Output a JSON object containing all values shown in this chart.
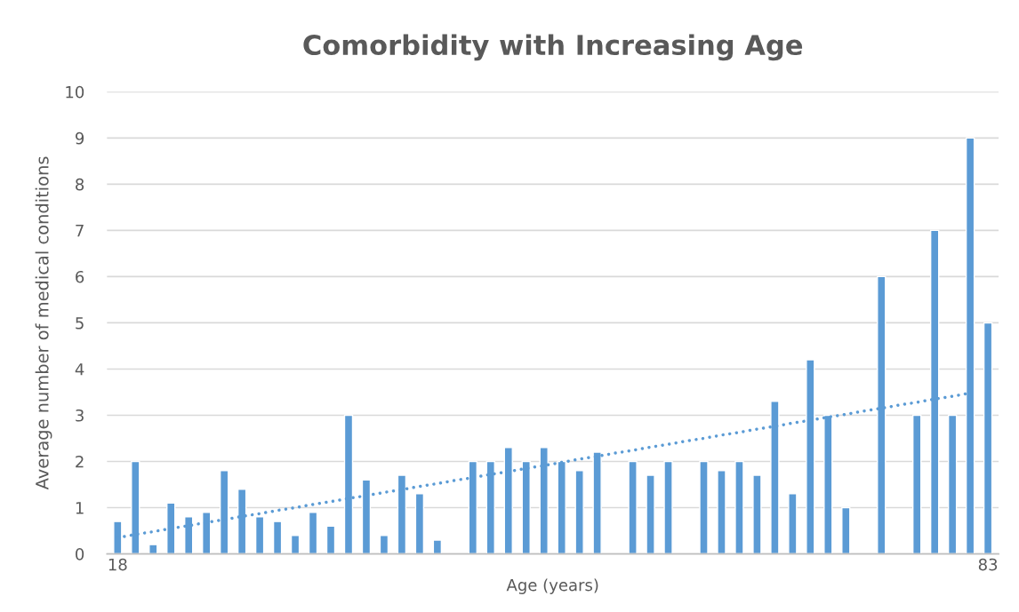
{
  "chart_data": {
    "type": "bar",
    "title": "Comorbidity with Increasing Age",
    "xlabel": "Age (years)",
    "ylabel": "Average number of medical conditions",
    "categories": [
      "18",
      null,
      null,
      null,
      null,
      null,
      null,
      null,
      null,
      null,
      null,
      null,
      null,
      null,
      null,
      null,
      null,
      null,
      null,
      null,
      null,
      null,
      null,
      null,
      null,
      null,
      null,
      null,
      null,
      null,
      null,
      null,
      null,
      null,
      null,
      null,
      null,
      null,
      null,
      null,
      null,
      null,
      null,
      null,
      null,
      null,
      null,
      null,
      null,
      "83"
    ],
    "series": [
      {
        "color": "#5b9bd5",
        "values": [
          0.7,
          2,
          0.2,
          1.1,
          0.8,
          0.9,
          1.8,
          1.4,
          0.8,
          0.7,
          0.4,
          0.9,
          0.6,
          3,
          1.6,
          0.4,
          1.7,
          1.3,
          0.3,
          null,
          2,
          2,
          2.3,
          2,
          2.3,
          2,
          1.8,
          2.2,
          null,
          2,
          1.7,
          2,
          null,
          2,
          1.8,
          2,
          1.7,
          3.3,
          1.3,
          4.2,
          3,
          1,
          null,
          6,
          null,
          3,
          7,
          3,
          9,
          5
        ]
      },
      {
        "type": "line",
        "color": "#5b9bd5",
        "line_style": "dotted",
        "values": [
          0.35,
          0.42,
          0.48,
          0.55,
          0.61,
          0.68,
          0.74,
          0.81,
          0.87,
          0.94,
          1.0,
          1.07,
          1.13,
          1.2,
          1.26,
          1.33,
          1.39,
          1.46,
          1.52,
          1.59,
          1.65,
          1.72,
          1.78,
          1.85,
          1.91,
          1.98,
          2.05,
          2.11,
          2.18,
          2.24,
          2.31,
          2.37,
          2.44,
          2.5,
          2.57,
          2.63,
          2.7,
          2.76,
          2.83,
          2.89,
          2.96,
          3.02,
          3.09,
          3.15,
          3.22,
          3.28,
          3.35,
          3.41,
          3.48,
          null
        ]
      }
    ],
    "ylim": [
      0,
      10
    ],
    "yticks": [
      0,
      1,
      2,
      3,
      4,
      5,
      6,
      7,
      8,
      9,
      10
    ],
    "grid": "y",
    "legend": false
  }
}
